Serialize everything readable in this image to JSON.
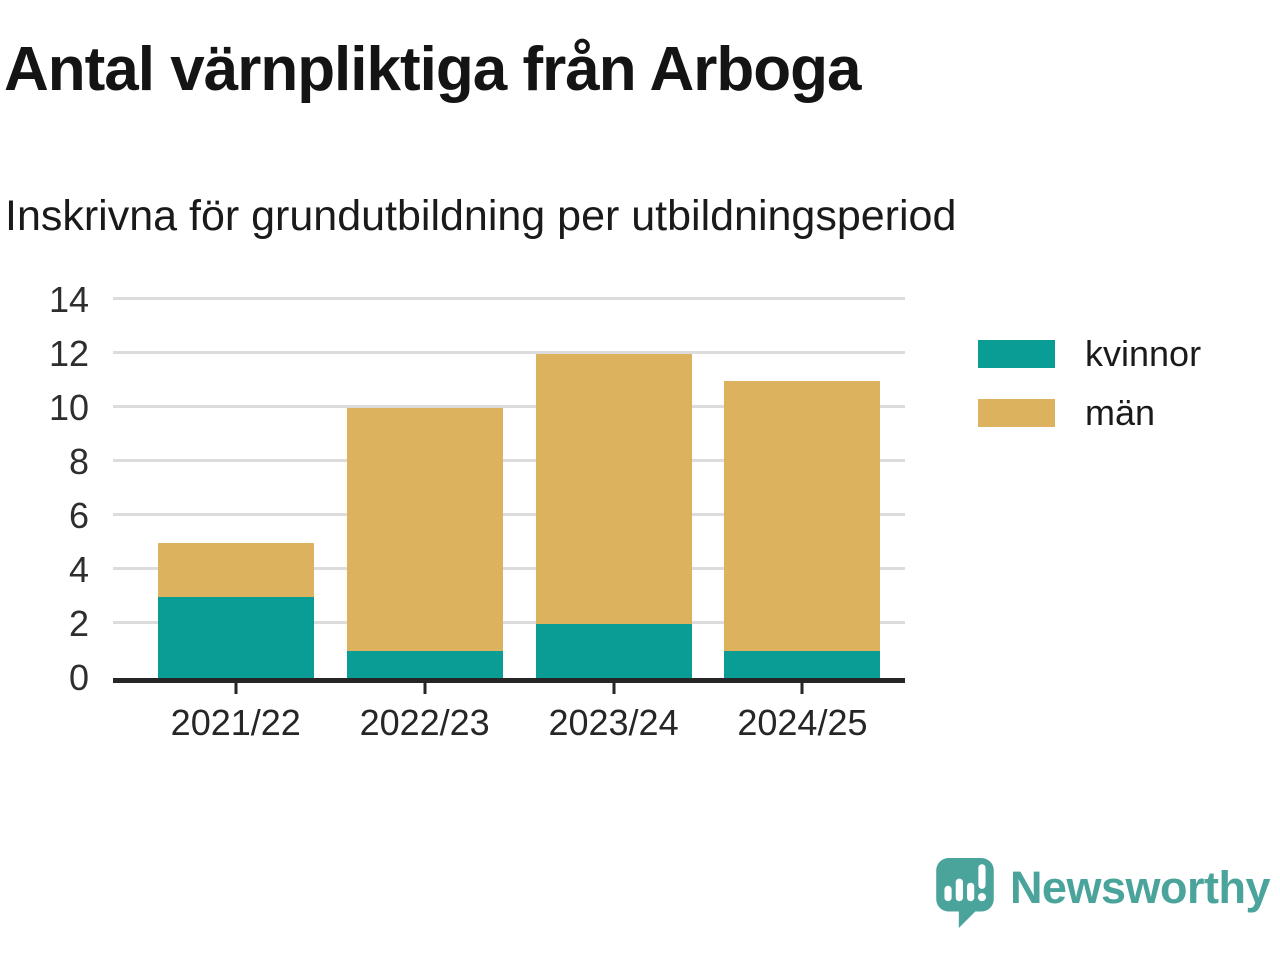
{
  "title": "Antal värnpliktiga från Arboga",
  "subtitle": "Inskrivna för grundutbildning per utbildningsperiod",
  "chart_data": {
    "type": "bar",
    "stacked": true,
    "title": "Antal värnpliktiga från Arboga",
    "subtitle": "Inskrivna för grundutbildning per utbildningsperiod",
    "categories": [
      "2021/22",
      "2022/23",
      "2023/24",
      "2024/25"
    ],
    "series": [
      {
        "name": "kvinnor",
        "color": "#0a9d95",
        "values": [
          3,
          1,
          2,
          1
        ]
      },
      {
        "name": "män",
        "color": "#dcb25e",
        "values": [
          2,
          9,
          10,
          10
        ]
      }
    ],
    "totals": [
      5,
      10,
      12,
      11
    ],
    "yticks": [
      0,
      2,
      4,
      6,
      8,
      10,
      12,
      14
    ],
    "ylim": [
      0,
      14
    ],
    "grid": true,
    "legend_position": "right"
  },
  "colors": {
    "grid": "#dcdcdc",
    "axis": "#262626",
    "text": "#1a1a1a",
    "brand": "#4aa49b"
  },
  "branding": {
    "logo_text": "Newsworthy"
  }
}
